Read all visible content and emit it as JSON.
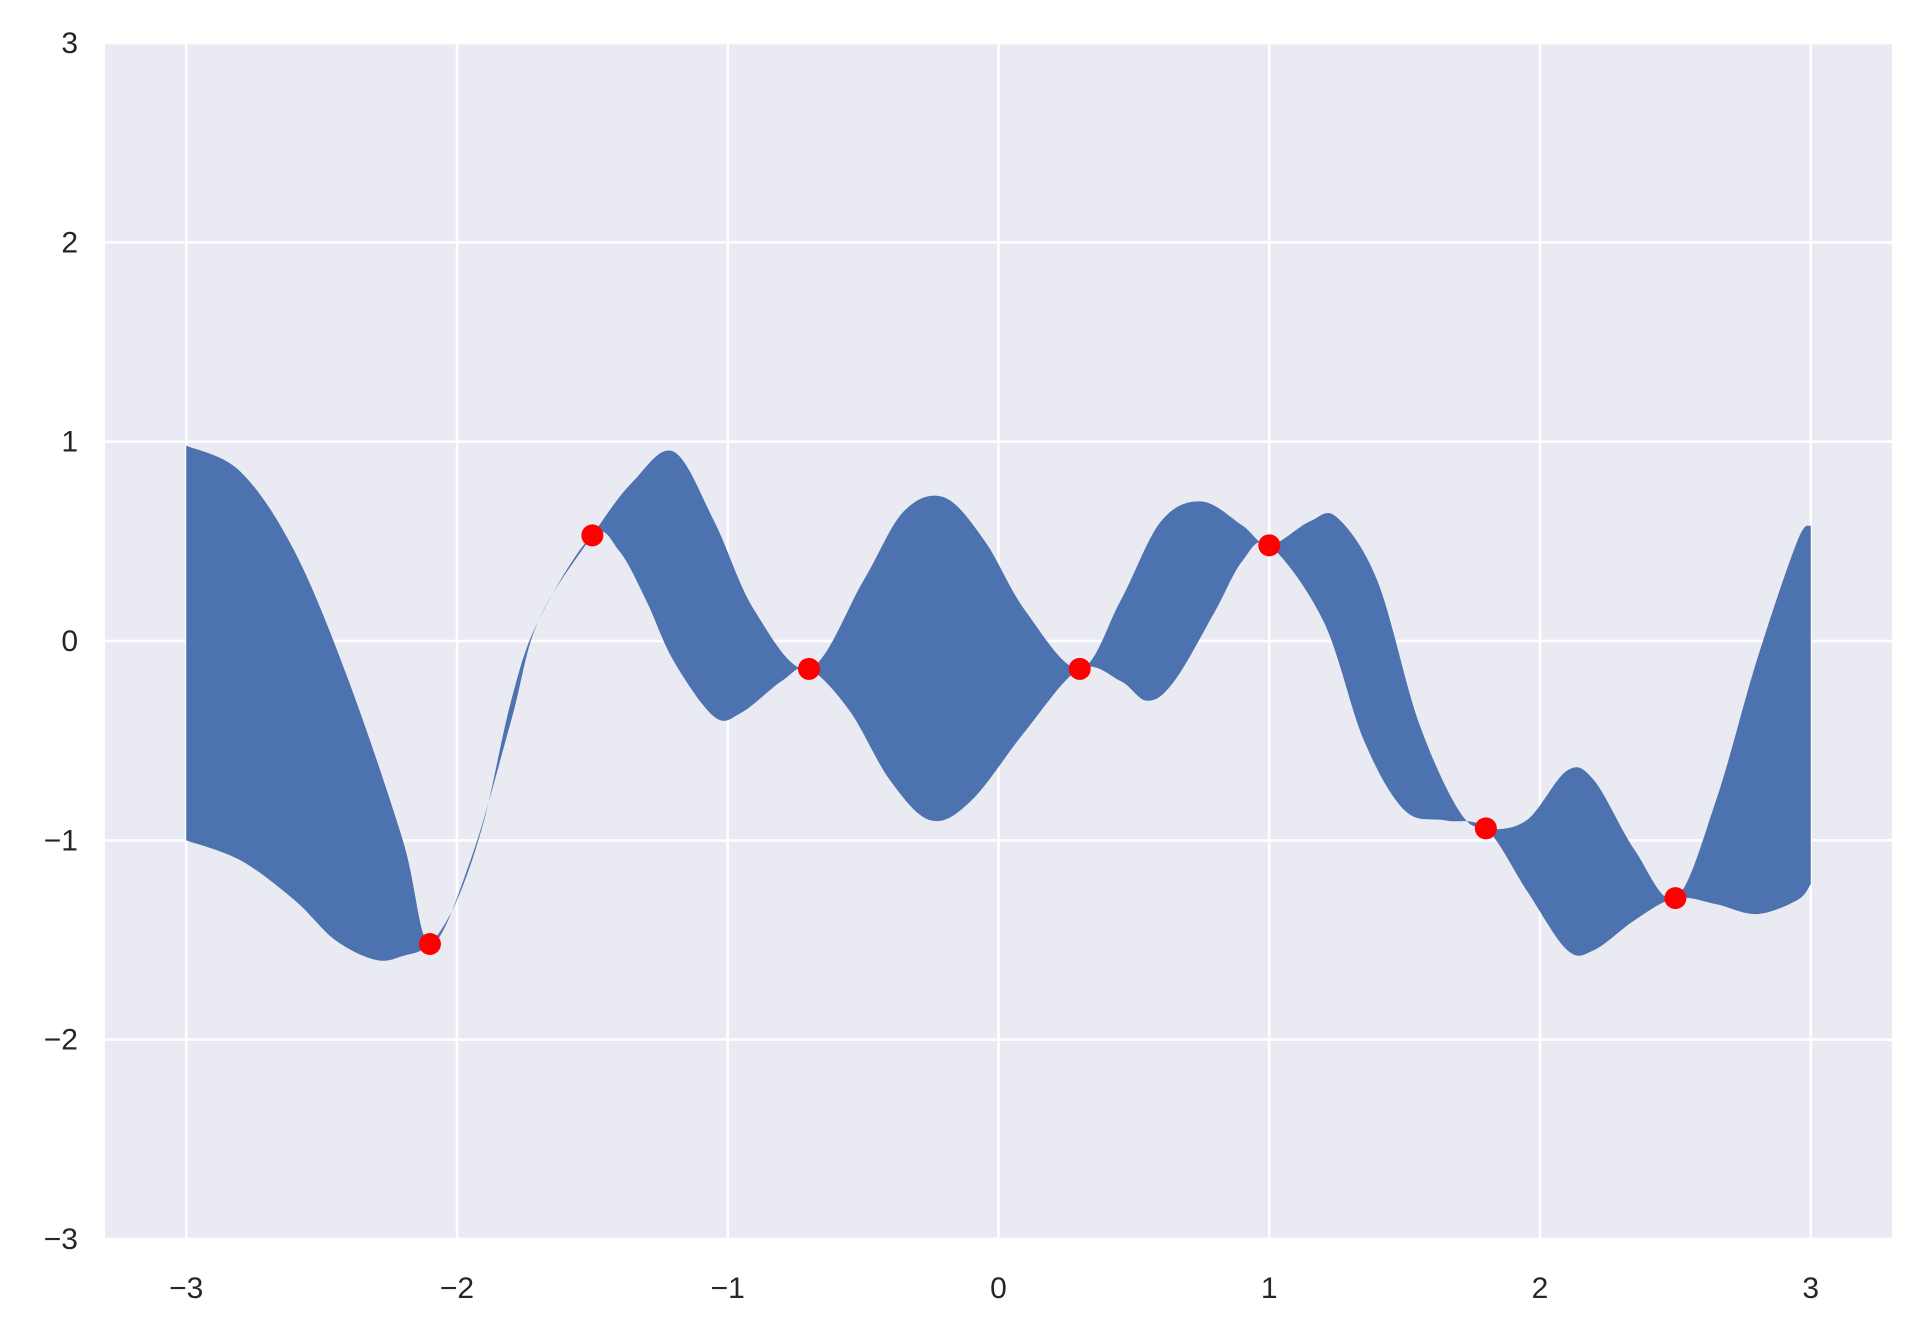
{
  "chart_data": {
    "type": "area",
    "title": "",
    "xlabel": "",
    "ylabel": "",
    "xlim": [
      -3.3,
      3.3
    ],
    "ylim": [
      -3,
      3
    ],
    "grid": true,
    "x_ticks": [
      -3,
      -2,
      -1,
      0,
      1,
      2,
      3
    ],
    "y_ticks": [
      -3,
      -2,
      -1,
      0,
      1,
      2,
      3
    ],
    "x_tick_labels": [
      "−3",
      "−2",
      "−1",
      "0",
      "1",
      "2",
      "3"
    ],
    "y_tick_labels": [
      "−3",
      "−2",
      "−1",
      "0",
      "1",
      "2",
      "3"
    ],
    "colors": {
      "background": "#eaeaf2",
      "grid": "#ffffff",
      "band": "#4c72b0",
      "points": "#ff0000"
    },
    "band": {
      "upper": [
        [
          -3,
          0.98
        ],
        [
          -2.8,
          0.85
        ],
        [
          -2.6,
          0.45
        ],
        [
          -2.4,
          -0.2
        ],
        [
          -2.2,
          -1.0
        ],
        [
          -2.1,
          -1.52
        ],
        [
          -1.95,
          -1.1
        ],
        [
          -1.8,
          -0.4
        ],
        [
          -1.7,
          0.1
        ],
        [
          -1.5,
          0.53
        ],
        [
          -1.35,
          0.8
        ],
        [
          -1.2,
          0.95
        ],
        [
          -1.05,
          0.6
        ],
        [
          -0.9,
          0.15
        ],
        [
          -0.7,
          -0.14
        ],
        [
          -0.5,
          0.3
        ],
        [
          -0.35,
          0.65
        ],
        [
          -0.2,
          0.72
        ],
        [
          -0.05,
          0.5
        ],
        [
          0.1,
          0.15
        ],
        [
          0.3,
          -0.14
        ],
        [
          0.45,
          0.2
        ],
        [
          0.6,
          0.6
        ],
        [
          0.75,
          0.7
        ],
        [
          0.9,
          0.58
        ],
        [
          1.0,
          0.48
        ],
        [
          1.15,
          0.6
        ],
        [
          1.25,
          0.62
        ],
        [
          1.4,
          0.3
        ],
        [
          1.55,
          -0.4
        ],
        [
          1.7,
          -0.85
        ],
        [
          1.8,
          -0.94
        ],
        [
          1.95,
          -0.9
        ],
        [
          2.1,
          -0.65
        ],
        [
          2.2,
          -0.7
        ],
        [
          2.35,
          -1.05
        ],
        [
          2.5,
          -1.29
        ],
        [
          2.65,
          -0.8
        ],
        [
          2.8,
          -0.1
        ],
        [
          2.95,
          0.5
        ],
        [
          3.0,
          0.58
        ]
      ],
      "lower": [
        [
          -3,
          -1.0
        ],
        [
          -2.8,
          -1.1
        ],
        [
          -2.6,
          -1.3
        ],
        [
          -2.45,
          -1.5
        ],
        [
          -2.3,
          -1.6
        ],
        [
          -2.2,
          -1.58
        ],
        [
          -2.1,
          -1.52
        ],
        [
          -2.0,
          -1.3
        ],
        [
          -1.9,
          -0.9
        ],
        [
          -1.8,
          -0.3
        ],
        [
          -1.7,
          0.1
        ],
        [
          -1.5,
          0.53
        ],
        [
          -1.4,
          0.45
        ],
        [
          -1.3,
          0.2
        ],
        [
          -1.2,
          -0.1
        ],
        [
          -1.05,
          -0.38
        ],
        [
          -0.95,
          -0.36
        ],
        [
          -0.8,
          -0.2
        ],
        [
          -0.7,
          -0.14
        ],
        [
          -0.55,
          -0.35
        ],
        [
          -0.4,
          -0.7
        ],
        [
          -0.25,
          -0.9
        ],
        [
          -0.1,
          -0.8
        ],
        [
          0.1,
          -0.45
        ],
        [
          0.3,
          -0.14
        ],
        [
          0.45,
          -0.2
        ],
        [
          0.55,
          -0.3
        ],
        [
          0.65,
          -0.2
        ],
        [
          0.8,
          0.15
        ],
        [
          0.9,
          0.4
        ],
        [
          1.0,
          0.48
        ],
        [
          1.2,
          0.1
        ],
        [
          1.35,
          -0.5
        ],
        [
          1.5,
          -0.85
        ],
        [
          1.65,
          -0.9
        ],
        [
          1.8,
          -0.94
        ],
        [
          1.95,
          -1.25
        ],
        [
          2.1,
          -1.55
        ],
        [
          2.2,
          -1.55
        ],
        [
          2.35,
          -1.4
        ],
        [
          2.5,
          -1.29
        ],
        [
          2.65,
          -1.32
        ],
        [
          2.8,
          -1.37
        ],
        [
          2.95,
          -1.3
        ],
        [
          3.0,
          -1.22
        ]
      ]
    },
    "points": [
      [
        -2.1,
        -1.52
      ],
      [
        -1.5,
        0.53
      ],
      [
        -0.7,
        -0.14
      ],
      [
        0.3,
        -0.14
      ],
      [
        1.0,
        0.48
      ],
      [
        1.8,
        -0.94
      ],
      [
        2.5,
        -1.29
      ]
    ]
  }
}
